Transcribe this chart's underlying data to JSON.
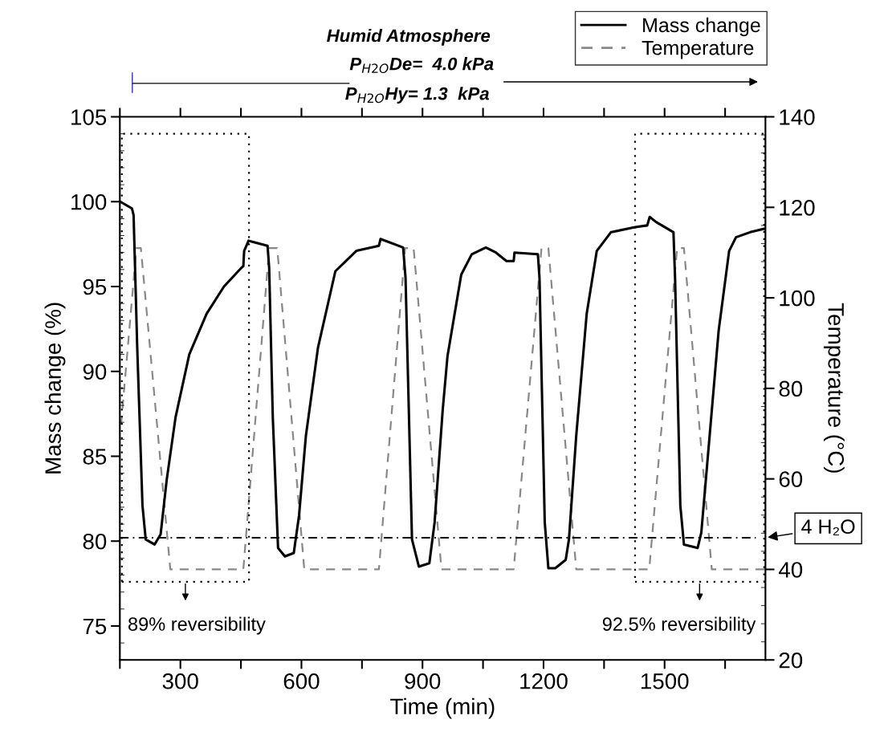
{
  "chart_data": {
    "type": "line",
    "xlabel": "Time (min)",
    "ylabel": "Mass change (%)",
    "y2label": "Temperature (°C)",
    "xlim": [
      150,
      1750
    ],
    "xticks": [
      {
        "value": 150,
        "label": null
      },
      300,
      {
        "value": 450,
        "label": null
      },
      600,
      {
        "value": 750,
        "label": null
      },
      900,
      {
        "value": 1050,
        "label": null
      },
      1200,
      {
        "value": 1350,
        "label": null
      },
      1500,
      {
        "value": 1650,
        "label": null
      }
    ],
    "ylim": [
      73,
      105
    ],
    "yticks": [
      75,
      80,
      85,
      90,
      95,
      100,
      105
    ],
    "y2lim": [
      20,
      140
    ],
    "y2ticks": [
      20,
      40,
      60,
      80,
      100,
      120,
      140
    ],
    "legend": "top right",
    "grid": false,
    "series": [
      {
        "name": "Mass change",
        "color": "#000000",
        "line_style": "solid",
        "x": [
          151,
          180,
          184,
          193,
          206,
          214,
          236,
          251,
          266,
          288,
          322,
          365,
          408,
          451,
          456,
          458,
          469,
          516,
          520,
          529,
          542,
          559,
          581,
          594,
          611,
          641,
          684,
          736,
          792,
          796,
          852,
          858,
          874,
          891,
          917,
          930,
          950,
          962,
          996,
          1022,
          1057,
          1082,
          1108,
          1126,
          1128,
          1186,
          1190,
          1203,
          1212,
          1229,
          1255,
          1263,
          1281,
          1307,
          1332,
          1367,
          1427,
          1457,
          1463,
          1479,
          1522,
          1526,
          1539,
          1548,
          1582,
          1591,
          1608,
          1634,
          1660,
          1677,
          1712,
          1746
        ],
        "values": [
          100.0,
          99.6,
          99.2,
          91.4,
          82.1,
          80.1,
          79.8,
          80.4,
          83.6,
          87.3,
          91.0,
          93.4,
          95.0,
          96.1,
          96.2,
          97.1,
          97.7,
          97.4,
          96.1,
          87.3,
          79.6,
          79.1,
          79.3,
          81.5,
          86.2,
          91.4,
          95.9,
          97.1,
          97.4,
          97.8,
          97.3,
          95.5,
          80.1,
          78.5,
          78.7,
          81.1,
          87.7,
          90.9,
          95.7,
          96.9,
          97.3,
          97.0,
          96.5,
          96.5,
          97.0,
          96.9,
          95.5,
          81.1,
          78.4,
          78.4,
          78.9,
          80.1,
          86.2,
          93.4,
          97.1,
          98.2,
          98.5,
          98.6,
          99.1,
          98.8,
          98.2,
          95.5,
          82.1,
          79.8,
          79.6,
          80.5,
          85.2,
          92.4,
          97.1,
          97.9,
          98.2,
          98.4
        ]
      },
      {
        "name": "Temperature",
        "color": "#888888",
        "line_style": "dashed",
        "axis": "y2",
        "x": [
          153,
          191,
          202,
          275,
          456,
          520,
          540,
          607,
          792,
          857,
          878,
          947,
          1126,
          1195,
          1212,
          1281,
          1462,
          1531,
          1548,
          1617,
          1748
        ],
        "values": [
          72,
          111,
          111,
          40,
          40,
          111,
          111,
          40,
          40,
          111,
          111,
          40,
          40,
          111,
          111,
          40,
          40,
          111,
          111,
          40,
          40
        ]
      }
    ],
    "ref_lines": [
      {
        "axis": "y",
        "value": 80.2,
        "label": "4 H₂O",
        "color": "#000000",
        "line_style": "dashdot"
      }
    ],
    "annotations": [
      "Humid Atmosphere",
      "P$_{H2O}$De=  4.0 kPa",
      "P$_{H2O}$Hy= 1.3  kPa",
      "89% reversibility",
      "92.5% reversibility"
    ]
  }
}
